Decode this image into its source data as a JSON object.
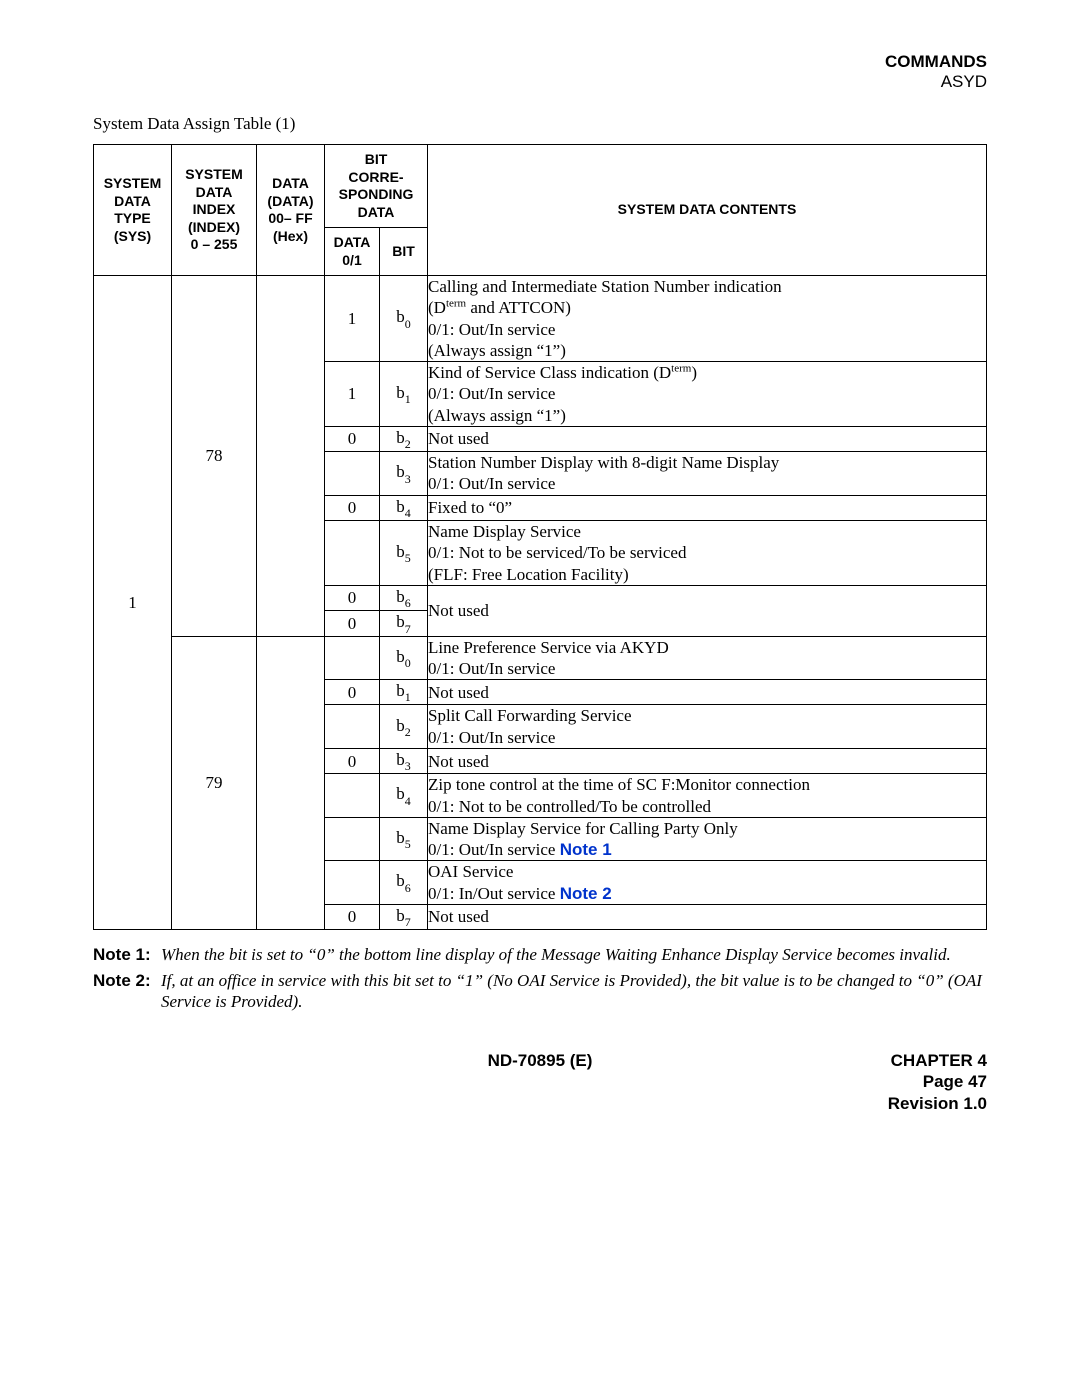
{
  "header": {
    "commands": "COMMANDS",
    "asyd": "ASYD"
  },
  "caption": "System Data Assign Table (1)",
  "th": {
    "sys": "SYSTEM DATA TYPE (SYS)",
    "index": "SYSTEM DATA INDEX (INDEX) 0 – 255",
    "data": "DATA (DATA) 00– FF (Hex)",
    "bitgroup": "BIT CORRE-SPONDING DATA",
    "d01": "DATA 0/1",
    "bit": "BIT",
    "contents": "SYSTEM DATA CONTENTS"
  },
  "sys_value": "1",
  "index78": "78",
  "index79": "79",
  "rows78": {
    "b0": {
      "d01": "1",
      "bit_b": "b",
      "bit_s": "0",
      "lines": [
        "Calling and Intermediate Station Number indication",
        "(D__SUP__term__ENDSUP__ and ATTCON)",
        "0/1: Out/In service",
        "(Always assign “1”)"
      ]
    },
    "b1": {
      "d01": "1",
      "bit_b": "b",
      "bit_s": "1",
      "lines": [
        "Kind of Service Class indication (D__SUP__term__ENDSUP__)",
        "0/1: Out/In service",
        "(Always assign “1”)"
      ]
    },
    "b2": {
      "d01": "0",
      "bit_b": "b",
      "bit_s": "2",
      "lines": [
        "Not used"
      ]
    },
    "b3": {
      "d01": "",
      "bit_b": "b",
      "bit_s": "3",
      "lines": [
        "Station Number Display with 8-digit Name Display",
        "0/1: Out/In service"
      ]
    },
    "b4": {
      "d01": "0",
      "bit_b": "b",
      "bit_s": "4",
      "lines": [
        "Fixed to “0”"
      ]
    },
    "b5": {
      "d01": "",
      "bit_b": "b",
      "bit_s": "5",
      "lines": [
        "Name Display Service",
        "0/1: Not to be serviced/To be serviced",
        "(FLF: Free Location Facility)"
      ]
    },
    "b6": {
      "d01": "0",
      "bit_b": "b",
      "bit_s": "6"
    },
    "b7": {
      "d01": "0",
      "bit_b": "b",
      "bit_s": "7"
    },
    "b6b7_content": "Not used"
  },
  "rows79": {
    "b0": {
      "d01": "",
      "bit_b": "b",
      "bit_s": "0",
      "lines": [
        "Line Preference Service via AKYD",
        "0/1: Out/In service"
      ]
    },
    "b1": {
      "d01": "0",
      "bit_b": "b",
      "bit_s": "1",
      "lines": [
        "Not used"
      ]
    },
    "b2": {
      "d01": "",
      "bit_b": "b",
      "bit_s": "2",
      "lines": [
        "Split Call Forwarding Service",
        "0/1: Out/In service"
      ]
    },
    "b3": {
      "d01": "0",
      "bit_b": "b",
      "bit_s": "3",
      "lines": [
        "Not used"
      ]
    },
    "b4": {
      "d01": "",
      "bit_b": "b",
      "bit_s": "4",
      "lines": [
        "Zip tone control at the time of SC  F:Monitor connection",
        "0/1: Not to be controlled/To be controlled"
      ]
    },
    "b5": {
      "d01": "",
      "bit_b": "b",
      "bit_s": "5",
      "lines": [
        "Name Display Service for Calling Party Only",
        "0/1: Out/In service __NOTE__Note 1__ENDNOTE__"
      ]
    },
    "b6": {
      "d01": "",
      "bit_b": "b",
      "bit_s": "6",
      "lines": [
        "OAI Service",
        "0/1: In/Out service __NOTE__Note 2__ENDNOTE__"
      ]
    },
    "b7": {
      "d01": "0",
      "bit_b": "b",
      "bit_s": "7",
      "lines": [
        "Not used"
      ]
    }
  },
  "notes": {
    "n1_label": "Note 1:",
    "n1_text": "When the bit is set to “0” the bottom line display of the Message Waiting Enhance Display Service becomes invalid.",
    "n2_label": "Note 2:",
    "n2_text": "If, at an office in service with this bit set to “1” (No OAI Service is Provided), the bit value is to be changed to “0” (OAI Service is Provided)."
  },
  "footer": {
    "doc": "ND-70895 (E)",
    "chapter": "CHAPTER 4",
    "page": "Page 47",
    "rev": "Revision 1.0"
  }
}
